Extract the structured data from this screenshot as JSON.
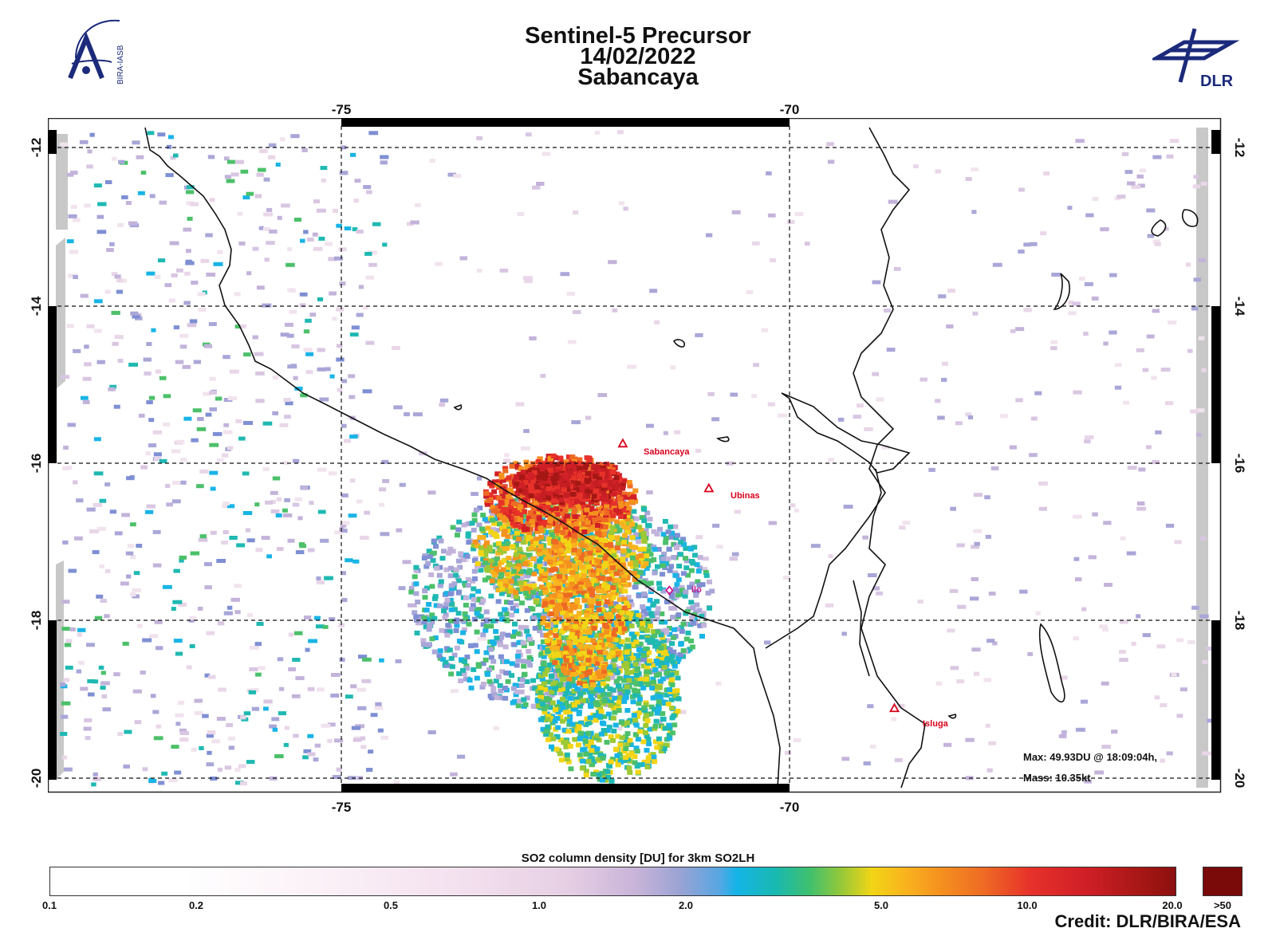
{
  "header": {
    "title_line1": "Sentinel-5 Precursor",
    "title_line2": "14/02/2022",
    "title_line3": "Sabancaya"
  },
  "logos": {
    "left_text": "BIRA-IASB",
    "right_text": "DLR"
  },
  "map": {
    "lon_ticks": [
      "-75",
      "-70"
    ],
    "lat_ticks": [
      "-12",
      "-14",
      "-16",
      "-18",
      "-20"
    ],
    "volcanoes": [
      {
        "name": "Sabancaya",
        "lon": -71.86,
        "lat": -15.78
      },
      {
        "name": "Ubinas",
        "lon": -70.9,
        "lat": -16.35
      },
      {
        "name": "Isluga",
        "lon": -68.83,
        "lat": -19.15
      }
    ],
    "cities": [
      {
        "name": "Ilo",
        "lon": -71.34,
        "lat": -17.64
      }
    ],
    "info": {
      "max_line": "Max:  49.93DU @ 18:09:04h,",
      "mass_line": "Mass:  10.35kt"
    }
  },
  "colorbar": {
    "title": "SO2 column density [DU] for 3km SO2LH",
    "tick_labels": [
      "0.1",
      "0.2",
      "0.5",
      "1.0",
      "2.0",
      "5.0",
      "10.0",
      "20.0",
      ">50"
    ],
    "colors": {
      "low": "#ffffff",
      "mid_blue": "#14b4e8",
      "mid_green": "#3fc06e",
      "yellow": "#f2d516",
      "orange": "#f5921e",
      "red": "#d01f27",
      "over": "#7a0a0a"
    }
  },
  "credit": "Credit: DLR/BIRA/ESA"
}
